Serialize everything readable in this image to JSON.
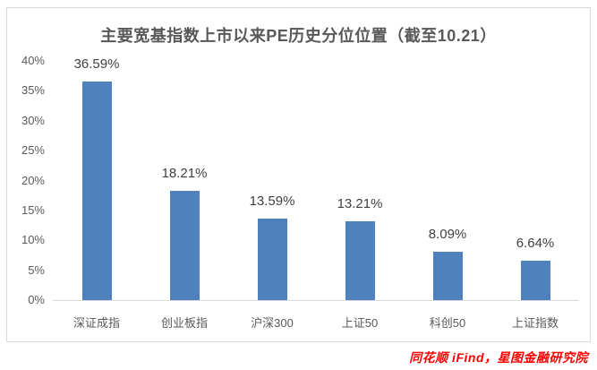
{
  "footer": "同花顺 iFind，星图金融研究院",
  "chart_data": {
    "type": "bar",
    "title": "主要宽基指数上市以来PE历史分位位置（截至10.21）",
    "categories": [
      "深证成指",
      "创业板指",
      "沪深300",
      "上证50",
      "科创50",
      "上证指数"
    ],
    "values": [
      36.59,
      18.21,
      13.59,
      13.21,
      8.09,
      6.64
    ],
    "value_labels": [
      "36.59%",
      "18.21%",
      "13.59%",
      "13.21%",
      "8.09%",
      "6.64%"
    ],
    "xlabel": "",
    "ylabel": "",
    "ylim": [
      0,
      40
    ],
    "ytick_values": [
      0,
      5,
      10,
      15,
      20,
      25,
      30,
      35,
      40
    ],
    "ytick_labels": [
      "0%",
      "5%",
      "10%",
      "15%",
      "20%",
      "25%",
      "30%",
      "35%",
      "40%"
    ],
    "grid": false,
    "legend": "none",
    "colors": {
      "bar": "#4f81bd",
      "title_text": "#595959",
      "axis_text": "#595959",
      "value_text": "#404040",
      "baseline": "#d9d9d9",
      "card_border": "#d9d9d9",
      "footer_text": "#ff0000",
      "background": "#ffffff"
    }
  }
}
